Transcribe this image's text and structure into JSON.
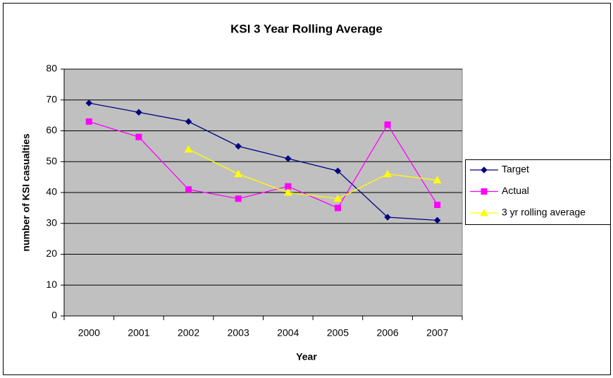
{
  "chart_data": {
    "type": "line",
    "title": "KSI 3 Year Rolling Average",
    "x_label": "Year",
    "y_label": "number of KSI casualties",
    "categories": [
      "2000",
      "2001",
      "2002",
      "2003",
      "2004",
      "2005",
      "2006",
      "2007"
    ],
    "series": [
      {
        "name": "Target",
        "color": "#000080",
        "marker": "diamond",
        "values": [
          69,
          66,
          63,
          55,
          51,
          47,
          32,
          31
        ]
      },
      {
        "name": "Actual",
        "color": "#ff00ff",
        "marker": "square",
        "values": [
          63,
          58,
          41,
          38,
          42,
          35,
          62,
          36
        ]
      },
      {
        "name": "3 yr rolling average",
        "color": "#ffff00",
        "marker": "triangle",
        "values": [
          null,
          null,
          54,
          46,
          40,
          38,
          46,
          44
        ]
      }
    ],
    "ylim": [
      0,
      80
    ],
    "yticks": [
      0,
      10,
      20,
      30,
      40,
      50,
      60,
      70,
      80
    ],
    "grid": true,
    "plot_background": "#c0c0c0",
    "legend": "right"
  }
}
